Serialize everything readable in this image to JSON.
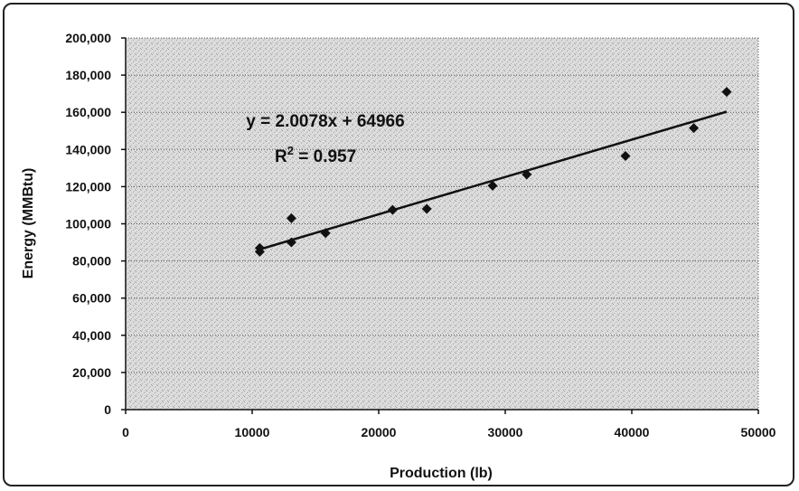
{
  "chart_data": {
    "type": "scatter",
    "title": "",
    "xlabel": "Production (lb)",
    "ylabel": "Energy (MMBtu)",
    "xlim": [
      0,
      50000
    ],
    "ylim": [
      0,
      200000
    ],
    "x_ticks": [
      0,
      10000,
      20000,
      30000,
      40000,
      50000
    ],
    "x_tick_labels": [
      "0",
      "10000",
      "20000",
      "30000",
      "40000",
      "50000"
    ],
    "y_ticks": [
      0,
      20000,
      40000,
      60000,
      80000,
      100000,
      120000,
      140000,
      160000,
      180000,
      200000
    ],
    "y_tick_labels": [
      "0",
      "20,000",
      "40,000",
      "60,000",
      "80,000",
      "100,000",
      "120,000",
      "140,000",
      "160,000",
      "180,000",
      "200,000"
    ],
    "grid": true,
    "series": [
      {
        "x": [
          10600,
          10600,
          13100,
          13100,
          15800,
          21100,
          23800,
          29000,
          31700,
          39500,
          44900,
          47500
        ],
        "y": [
          85000,
          87000,
          90000,
          103000,
          95000,
          107500,
          108000,
          120500,
          126500,
          136500,
          151500,
          171000
        ]
      }
    ],
    "trendline": {
      "slope": 2.0078,
      "intercept": 64966,
      "x_range": [
        10600,
        47500
      ],
      "equation_label": "y = 2.0078x + 64966",
      "r2_prefix": "R",
      "r2_exponent": "2",
      "r2_value": " = 0.957"
    },
    "colors": {
      "marker": "#111111",
      "trendline": "#111111",
      "plot_background": "#d8d8d8"
    }
  }
}
